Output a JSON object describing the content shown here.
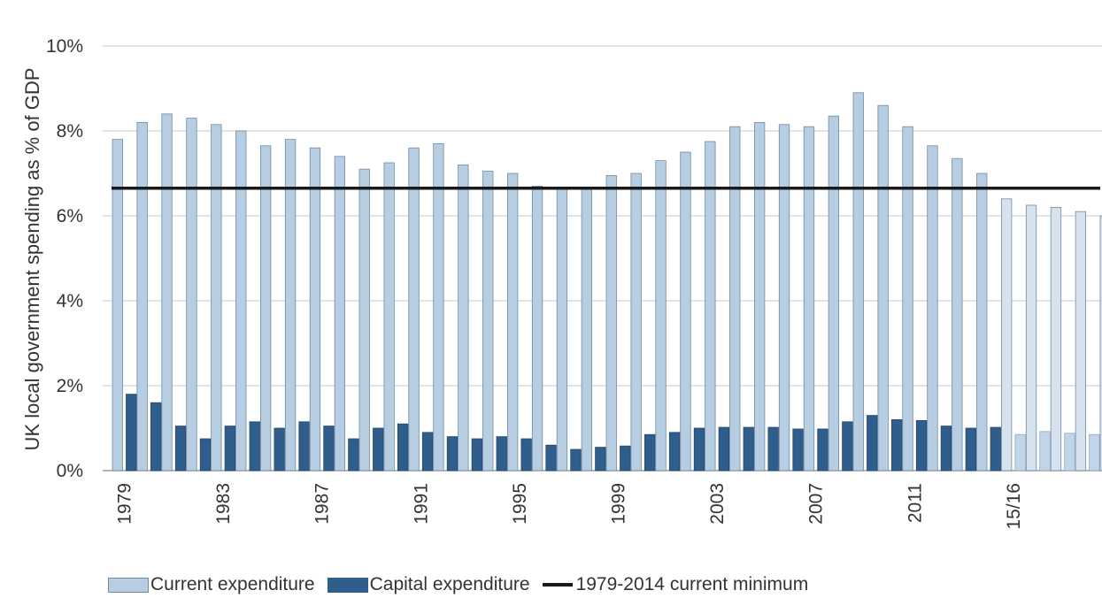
{
  "chart_data": {
    "type": "bar",
    "ylabel": "UK local government spending as % of GDP",
    "ylim": [
      0,
      10
    ],
    "yticks": [
      "0%",
      "2%",
      "4%",
      "6%",
      "8%",
      "10%"
    ],
    "grid": true,
    "legend_position": "bottom",
    "categories": [
      "1979",
      "1980",
      "1981",
      "1982",
      "1983",
      "1984",
      "1985",
      "1986",
      "1987",
      "1988",
      "1989",
      "1990",
      "1991",
      "1992",
      "1993",
      "1994",
      "1995",
      "1996",
      "1997",
      "1998",
      "1999",
      "2000",
      "2001",
      "2002",
      "2003",
      "2004",
      "2005",
      "2006",
      "2007",
      "2008",
      "2009",
      "2010",
      "2011",
      "2012",
      "2013",
      "2014",
      "15/16",
      "16/17",
      "17/18",
      "18/19",
      "19/20"
    ],
    "tick_labels": [
      "1979",
      "1983",
      "1987",
      "1991",
      "1995",
      "1999",
      "2003",
      "2007",
      "2011",
      "15/16",
      "19/20"
    ],
    "series": [
      {
        "name": "Current expenditure",
        "color": "#b7cde2",
        "projection_color": "#d6e3ef",
        "values": [
          7.8,
          8.2,
          8.4,
          8.3,
          8.15,
          8.0,
          7.65,
          7.8,
          7.6,
          7.4,
          7.1,
          7.25,
          7.6,
          7.7,
          7.2,
          7.05,
          7.0,
          6.7,
          6.65,
          6.65,
          6.95,
          7.0,
          7.3,
          7.5,
          7.75,
          8.1,
          8.2,
          8.15,
          8.1,
          8.35,
          8.9,
          8.6,
          8.1,
          7.65,
          7.35,
          7.0,
          6.4,
          6.25,
          6.2,
          6.1,
          6.0
        ]
      },
      {
        "name": "Capital expenditure",
        "color": "#2f5e8c",
        "projection_color": "#c2d5e8",
        "values": [
          1.8,
          1.6,
          1.05,
          0.75,
          1.05,
          1.15,
          1.0,
          1.15,
          1.05,
          0.75,
          1.0,
          1.1,
          0.9,
          0.8,
          0.75,
          0.8,
          0.75,
          0.6,
          0.5,
          0.55,
          0.58,
          0.85,
          0.9,
          1.0,
          1.02,
          1.02,
          1.02,
          0.98,
          0.98,
          1.15,
          1.3,
          1.2,
          1.18,
          1.05,
          1.0,
          1.02,
          0.85,
          0.92,
          0.88,
          0.85,
          0.85
        ]
      }
    ],
    "reference_line": {
      "name": "1979-2014 current minimum",
      "value": 6.65,
      "color": "#1a1a1a"
    },
    "projection_from_index": 36
  },
  "legend": {
    "current_label": "Current expenditure",
    "capital_label": "Capital expenditure",
    "minimum_label": "1979-2014 current minimum"
  }
}
